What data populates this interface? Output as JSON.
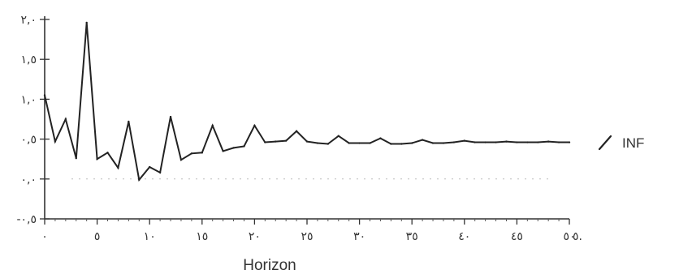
{
  "chart_data": {
    "type": "line",
    "title": "",
    "xlabel": "Horizon",
    "ylabel": "",
    "xlim": [
      0,
      50
    ],
    "ylim": [
      -0.5,
      2.0
    ],
    "grid": false,
    "legend_position": "right",
    "x_ticks": [
      {
        "value": 0,
        "label": "٠"
      },
      {
        "value": 5,
        "label": "٥"
      },
      {
        "value": 10,
        "label": "١٠"
      },
      {
        "value": 15,
        "label": "١٥"
      },
      {
        "value": 20,
        "label": "٢٠"
      },
      {
        "value": 25,
        "label": "٢٥"
      },
      {
        "value": 30,
        "label": "٣٠"
      },
      {
        "value": 35,
        "label": "٣٥"
      },
      {
        "value": 40,
        "label": "٤٠"
      },
      {
        "value": 45,
        "label": "٤٥"
      },
      {
        "value": 50,
        "label": "٥٠"
      }
    ],
    "y_ticks": [
      {
        "value": 2.0,
        "label": "٢,٠"
      },
      {
        "value": 1.5,
        "label": "١,٥"
      },
      {
        "value": 1.0,
        "label": "١,٠"
      },
      {
        "value": 0.5,
        "label": "٠,٥"
      },
      {
        "value": 0.0,
        "label": "٠,٠"
      },
      {
        "value": -0.5,
        "label": "-٠,٥"
      }
    ],
    "x_end_extra": {
      "value": 50,
      "label": "٥."
    },
    "series": [
      {
        "name": "INF",
        "color": "#222222",
        "x": [
          0,
          1,
          2,
          3,
          4,
          5,
          6,
          7,
          8,
          9,
          10,
          11,
          12,
          13,
          14,
          15,
          16,
          17,
          18,
          19,
          20,
          21,
          22,
          23,
          24,
          25,
          26,
          27,
          28,
          29,
          30,
          31,
          32,
          33,
          34,
          35,
          36,
          37,
          38,
          39,
          40,
          41,
          42,
          43,
          44,
          45,
          46,
          47,
          48,
          49,
          50
        ],
        "y": [
          1.05,
          0.47,
          0.75,
          0.26,
          1.96,
          0.25,
          0.33,
          0.14,
          0.72,
          -0.01,
          0.15,
          0.08,
          0.78,
          0.24,
          0.32,
          0.33,
          0.67,
          0.35,
          0.39,
          0.41,
          0.67,
          0.46,
          0.47,
          0.48,
          0.6,
          0.47,
          0.45,
          0.44,
          0.54,
          0.45,
          0.45,
          0.45,
          0.51,
          0.44,
          0.44,
          0.45,
          0.49,
          0.45,
          0.45,
          0.46,
          0.48,
          0.46,
          0.46,
          0.46,
          0.47,
          0.46,
          0.46,
          0.46,
          0.47,
          0.46,
          0.46
        ]
      }
    ]
  }
}
